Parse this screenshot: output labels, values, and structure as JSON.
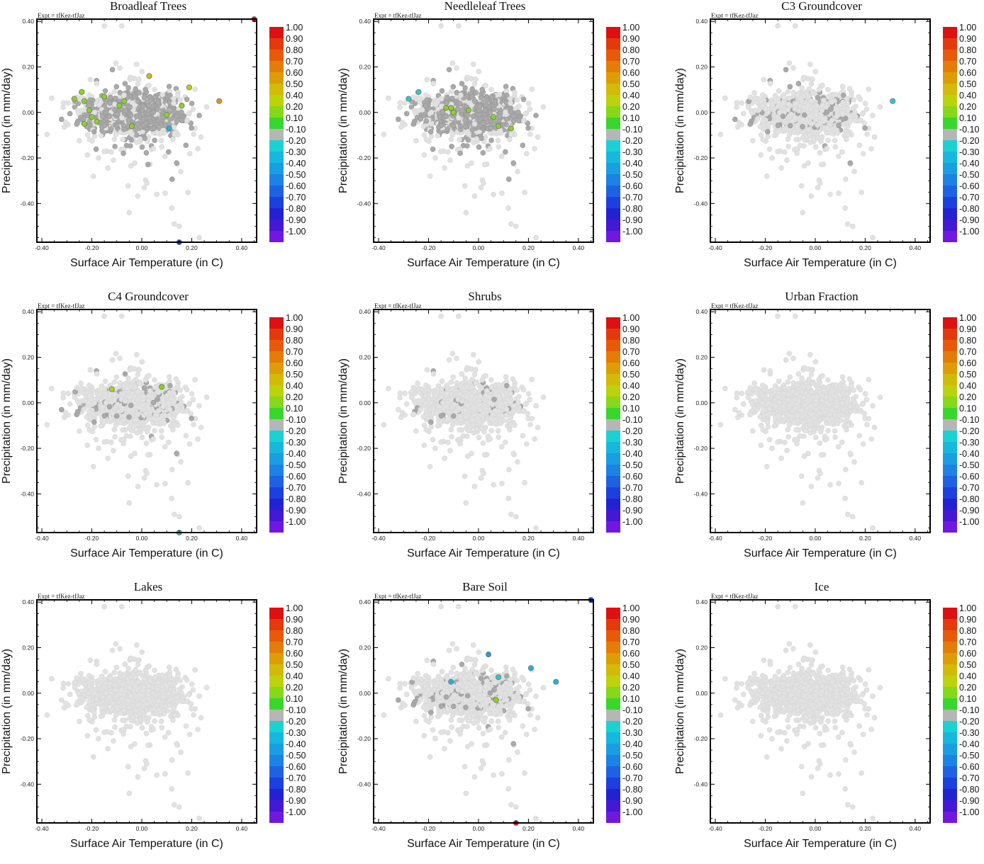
{
  "figure": {
    "colors": {
      "background_points": "#e2e2e2",
      "neutral_points": "#aaaaaa",
      "axis": "#000000"
    },
    "colorbar": {
      "labels": [
        "1.00",
        "0.90",
        "0.80",
        "0.70",
        "0.60",
        "0.50",
        "0.40",
        "0.20",
        "0.10",
        "-0.10",
        "-0.20",
        "-0.30",
        "-0.40",
        "-0.50",
        "-0.60",
        "-0.70",
        "-0.80",
        "-0.90",
        "-1.00"
      ],
      "colors": [
        "#dd1111",
        "#e23a0c",
        "#e65a0a",
        "#e47c08",
        "#dc9d06",
        "#d2ba08",
        "#bcd20c",
        "#86d818",
        "#3ad630",
        "#b6b6b6",
        "#1ad2d2",
        "#16b8de",
        "#1a9ee2",
        "#1c82e4",
        "#1e62e2",
        "#1c40de",
        "#2222d2",
        "#4418d4",
        "#7018e0"
      ]
    }
  },
  "chart_data": [
    {
      "type": "scatter",
      "title": "Broadleaf Trees",
      "annotation": "Expt = tfKez-tfJaz",
      "xlabel": "Surface Air Temperature (in C)",
      "ylabel": "Precipitation (in mm/day)",
      "xlim": [
        -0.42,
        0.46
      ],
      "ylim": [
        -0.57,
        0.41
      ],
      "xticks": [
        "-0.40",
        "-0.20",
        "0.00",
        "0.20",
        "0.40"
      ],
      "yticks": [
        "0.40",
        "0.20",
        "0.00",
        "-0.20",
        "-0.40"
      ],
      "grey_level": 0.85,
      "highlighted_points": [
        {
          "x": 0.45,
          "y": 0.41,
          "value": 0.95
        },
        {
          "x": 0.15,
          "y": -0.57,
          "value": -0.75
        },
        {
          "x": 0.03,
          "y": 0.16,
          "value": 0.45
        },
        {
          "x": 0.19,
          "y": 0.11,
          "value": 0.4
        },
        {
          "x": 0.31,
          "y": 0.05,
          "value": 0.55
        },
        {
          "x": -0.27,
          "y": 0.06,
          "value": 0.15
        },
        {
          "x": -0.24,
          "y": 0.09,
          "value": 0.15
        },
        {
          "x": -0.23,
          "y": 0.05,
          "value": 0.15
        },
        {
          "x": -0.15,
          "y": 0.07,
          "value": 0.15
        },
        {
          "x": -0.21,
          "y": 0.01,
          "value": 0.15
        },
        {
          "x": -0.2,
          "y": -0.02,
          "value": 0.15
        },
        {
          "x": -0.18,
          "y": -0.04,
          "value": 0.15
        },
        {
          "x": -0.23,
          "y": -0.05,
          "value": 0.15
        },
        {
          "x": -0.09,
          "y": 0.03,
          "value": 0.15
        },
        {
          "x": -0.07,
          "y": 0.05,
          "value": 0.15
        },
        {
          "x": -0.04,
          "y": -0.06,
          "value": 0.15
        },
        {
          "x": 0.1,
          "y": -0.01,
          "value": 0.15
        },
        {
          "x": 0.16,
          "y": 0.03,
          "value": 0.15
        },
        {
          "x": 0.11,
          "y": -0.07,
          "value": -0.3
        }
      ]
    },
    {
      "type": "scatter",
      "title": "Needleleaf Trees",
      "annotation": "Expt = tfKez-tfJaz",
      "xlabel": "Surface Air Temperature (in C)",
      "ylabel": "Precipitation (in mm/day)",
      "xlim": [
        -0.42,
        0.46
      ],
      "ylim": [
        -0.57,
        0.41
      ],
      "xticks": [
        "-0.40",
        "-0.20",
        "0.00",
        "0.20",
        "0.40"
      ],
      "yticks": [
        "0.40",
        "0.20",
        "0.00",
        "-0.20",
        "-0.40"
      ],
      "grey_level": 0.8,
      "highlighted_points": [
        {
          "x": -0.24,
          "y": 0.09,
          "value": -0.25
        },
        {
          "x": -0.28,
          "y": 0.06,
          "value": -0.25
        },
        {
          "x": -0.13,
          "y": 0.02,
          "value": 0.15
        },
        {
          "x": -0.11,
          "y": 0.02,
          "value": 0.15
        },
        {
          "x": -0.1,
          "y": 0.0,
          "value": 0.15
        },
        {
          "x": -0.04,
          "y": 0.01,
          "value": 0.15
        },
        {
          "x": 0.06,
          "y": -0.02,
          "value": 0.15
        },
        {
          "x": 0.08,
          "y": -0.06,
          "value": 0.15
        },
        {
          "x": 0.13,
          "y": -0.07,
          "value": 0.15
        }
      ]
    },
    {
      "type": "scatter",
      "title": "C3 Groundcover",
      "annotation": "Expt = tfKez-tfJaz",
      "xlabel": "Surface Air Temperature (in C)",
      "ylabel": "Precipitation (in mm/day)",
      "xlim": [
        -0.42,
        0.46
      ],
      "ylim": [
        -0.57,
        0.41
      ],
      "xticks": [
        "-0.40",
        "-0.20",
        "0.00",
        "0.20",
        "0.40"
      ],
      "yticks": [
        "0.40",
        "0.20",
        "0.00",
        "-0.20",
        "-0.40"
      ],
      "grey_level": 0.2,
      "highlighted_points": [
        {
          "x": 0.31,
          "y": 0.05,
          "value": -0.25
        }
      ]
    },
    {
      "type": "scatter",
      "title": "C4 Groundcover",
      "annotation": "Expt = tfKez-tfJaz",
      "xlabel": "Surface Air Temperature (in C)",
      "ylabel": "Precipitation (in mm/day)",
      "xlim": [
        -0.42,
        0.46
      ],
      "ylim": [
        -0.57,
        0.41
      ],
      "xticks": [
        "-0.40",
        "-0.20",
        "0.00",
        "0.20",
        "0.40"
      ],
      "yticks": [
        "0.40",
        "0.20",
        "0.00",
        "-0.20",
        "-0.40"
      ],
      "grey_level": 0.15,
      "highlighted_points": [
        {
          "x": -0.12,
          "y": 0.06,
          "value": 0.35
        },
        {
          "x": 0.08,
          "y": 0.07,
          "value": 0.15
        },
        {
          "x": 0.15,
          "y": -0.57,
          "value": -0.35
        }
      ]
    },
    {
      "type": "scatter",
      "title": "Shrubs",
      "annotation": "Expt = tfKez-tfJaz",
      "xlabel": "Surface Air Temperature (in C)",
      "ylabel": "Precipitation (in mm/day)",
      "xlim": [
        -0.42,
        0.46
      ],
      "ylim": [
        -0.57,
        0.41
      ],
      "xticks": [
        "-0.40",
        "-0.20",
        "0.00",
        "0.20",
        "0.40"
      ],
      "yticks": [
        "0.40",
        "0.20",
        "0.00",
        "-0.20",
        "-0.40"
      ],
      "grey_level": 0.07,
      "highlighted_points": []
    },
    {
      "type": "scatter",
      "title": "Urban Fraction",
      "annotation": "Expt = tfKez-tfJaz",
      "xlabel": "Surface Air Temperature (in C)",
      "ylabel": "Precipitation (in mm/day)",
      "xlim": [
        -0.42,
        0.46
      ],
      "ylim": [
        -0.57,
        0.41
      ],
      "xticks": [
        "-0.40",
        "-0.20",
        "0.00",
        "0.20",
        "0.40"
      ],
      "yticks": [
        "0.40",
        "0.20",
        "0.00",
        "-0.20",
        "-0.40"
      ],
      "grey_level": 0.0,
      "highlighted_points": []
    },
    {
      "type": "scatter",
      "title": "Lakes",
      "annotation": "Expt = tfKez-tfJaz",
      "xlabel": "Surface Air Temperature (in C)",
      "ylabel": "Precipitation (in mm/day)",
      "xlim": [
        -0.42,
        0.46
      ],
      "ylim": [
        -0.57,
        0.41
      ],
      "xticks": [
        "-0.40",
        "-0.20",
        "0.00",
        "0.20",
        "0.40"
      ],
      "yticks": [
        "0.40",
        "0.20",
        "0.00",
        "-0.20",
        "-0.40"
      ],
      "grey_level": 0.0,
      "highlighted_points": []
    },
    {
      "type": "scatter",
      "title": "Bare Soil",
      "annotation": "Expt = tfKez-tfJaz",
      "xlabel": "Surface Air Temperature (in C)",
      "ylabel": "Precipitation (in mm/day)",
      "xlim": [
        -0.42,
        0.46
      ],
      "ylim": [
        -0.57,
        0.41
      ],
      "xticks": [
        "-0.40",
        "-0.20",
        "0.00",
        "0.20",
        "0.40"
      ],
      "yticks": [
        "0.40",
        "0.20",
        "0.00",
        "-0.20",
        "-0.40"
      ],
      "grey_level": 0.15,
      "highlighted_points": [
        {
          "x": 0.45,
          "y": 0.41,
          "value": -0.75
        },
        {
          "x": 0.15,
          "y": -0.57,
          "value": 0.95
        },
        {
          "x": 0.04,
          "y": 0.17,
          "value": -0.45
        },
        {
          "x": 0.21,
          "y": 0.11,
          "value": -0.35
        },
        {
          "x": -0.11,
          "y": 0.05,
          "value": -0.35
        },
        {
          "x": 0.31,
          "y": 0.05,
          "value": -0.35
        },
        {
          "x": 0.08,
          "y": 0.07,
          "value": -0.25
        },
        {
          "x": 0.07,
          "y": -0.03,
          "value": 0.15
        }
      ]
    },
    {
      "type": "scatter",
      "title": "Ice",
      "annotation": "Expt = tfKez-tfJaz",
      "xlabel": "Surface Air Temperature (in C)",
      "ylabel": "Precipitation (in mm/day)",
      "xlim": [
        -0.42,
        0.46
      ],
      "ylim": [
        -0.57,
        0.41
      ],
      "xticks": [
        "-0.40",
        "-0.20",
        "0.00",
        "0.20",
        "0.40"
      ],
      "yticks": [
        "0.40",
        "0.20",
        "0.00",
        "-0.20",
        "-0.40"
      ],
      "grey_level": 0.0,
      "highlighted_points": []
    }
  ]
}
